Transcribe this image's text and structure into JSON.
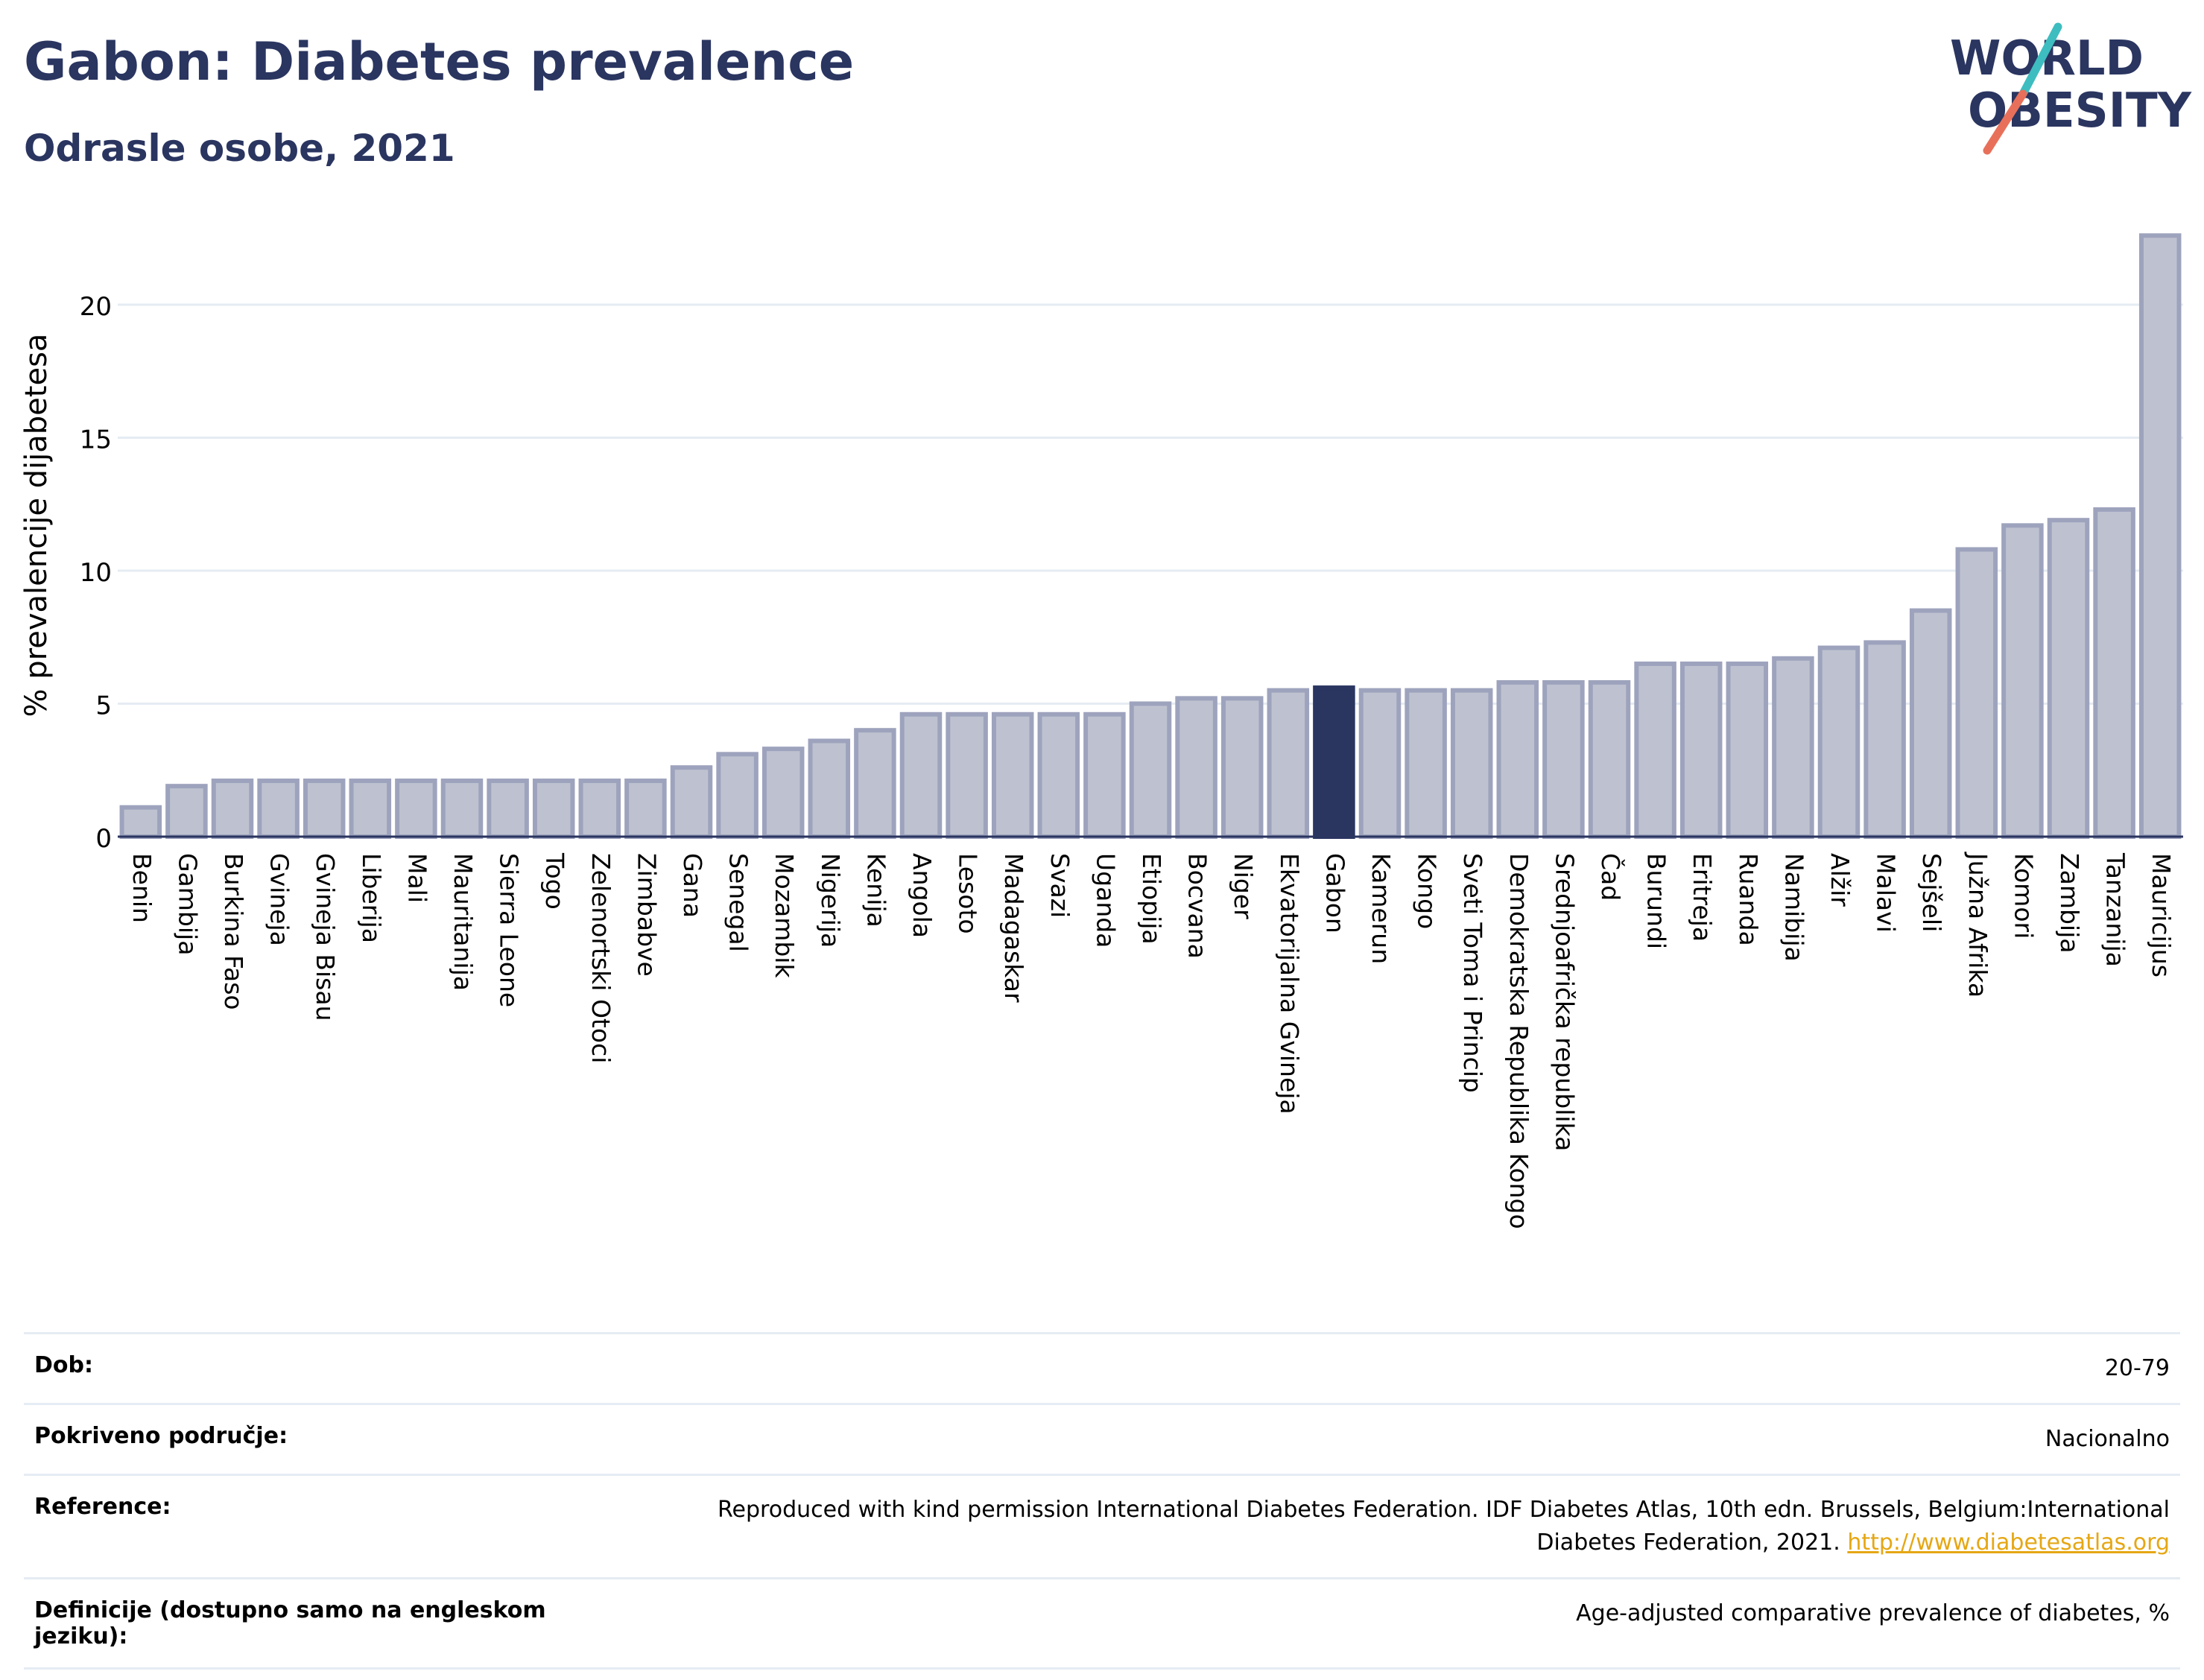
{
  "header": {
    "title": "Gabon: Diabetes prevalence",
    "subtitle": "Odrasle osobe, 2021"
  },
  "logo": {
    "line1": "WORLD",
    "line2": "OBESITY",
    "colors": {
      "text": "#2a3560",
      "teal": "#3dbdbf",
      "coral": "#e8705a"
    }
  },
  "chart_data": {
    "type": "bar",
    "ylabel": "% prevalencije dijabetesa",
    "ylim": [
      0,
      23
    ],
    "yticks": [
      0,
      5,
      10,
      15,
      20
    ],
    "grid": true,
    "highlight": "Gabon",
    "colors": {
      "bar": "#bec2d0",
      "bar_edge": "#9ea3bd",
      "highlight": "#2a3560",
      "grid": "#e6ecf3"
    },
    "categories": [
      "Benin",
      "Gambija",
      "Burkina Faso",
      "Gvineja",
      "Gvineja Bisau",
      "Liberija",
      "Mali",
      "Mauritanija",
      "Sierra Leone",
      "Togo",
      "Zelenortski Otoci",
      "Zimbabve",
      "Gana",
      "Senegal",
      "Mozambik",
      "Nigerija",
      "Kenija",
      "Angola",
      "Lesoto",
      "Madagaskar",
      "Svazi",
      "Uganda",
      "Etiopija",
      "Bocvana",
      "Niger",
      "Ekvatorijalna Gvineja",
      "Gabon",
      "Kamerun",
      "Kongo",
      "Sveti Toma i Princip",
      "Demokratska Republika Kongo",
      "Srednjoafrička republika",
      "Čad",
      "Burundi",
      "Eritreja",
      "Ruanda",
      "Namibija",
      "Alžir",
      "Malavi",
      "Sejšeli",
      "Južna Afrika",
      "Komori",
      "Zambija",
      "Tanzanija",
      "Mauricijus"
    ],
    "values": [
      1.1,
      1.9,
      2.1,
      2.1,
      2.1,
      2.1,
      2.1,
      2.1,
      2.1,
      2.1,
      2.1,
      2.1,
      2.6,
      3.1,
      3.3,
      3.6,
      4.0,
      4.6,
      4.6,
      4.6,
      4.6,
      4.6,
      5.0,
      5.2,
      5.2,
      5.5,
      5.6,
      5.5,
      5.5,
      5.5,
      5.8,
      5.8,
      5.8,
      6.5,
      6.5,
      6.5,
      6.7,
      7.1,
      7.3,
      8.5,
      10.8,
      11.7,
      11.9,
      12.3,
      22.6
    ]
  },
  "info": {
    "rows": [
      {
        "key": "Dob:",
        "value": "20-79"
      },
      {
        "key": "Pokriveno područje:",
        "value": "Nacionalno"
      },
      {
        "key": "Reference:",
        "value": "Reproduced with kind permission International Diabetes Federation.  IDF Diabetes Atlas, 10th edn. Brussels, Belgium:International Diabetes Federation, 2021.",
        "link": "http://www.diabetesatlas.org"
      },
      {
        "key": "Definicije (dostupno samo na engleskom jeziku):",
        "value": "Age-adjusted comparative prevalence of diabetes, %"
      }
    ]
  }
}
